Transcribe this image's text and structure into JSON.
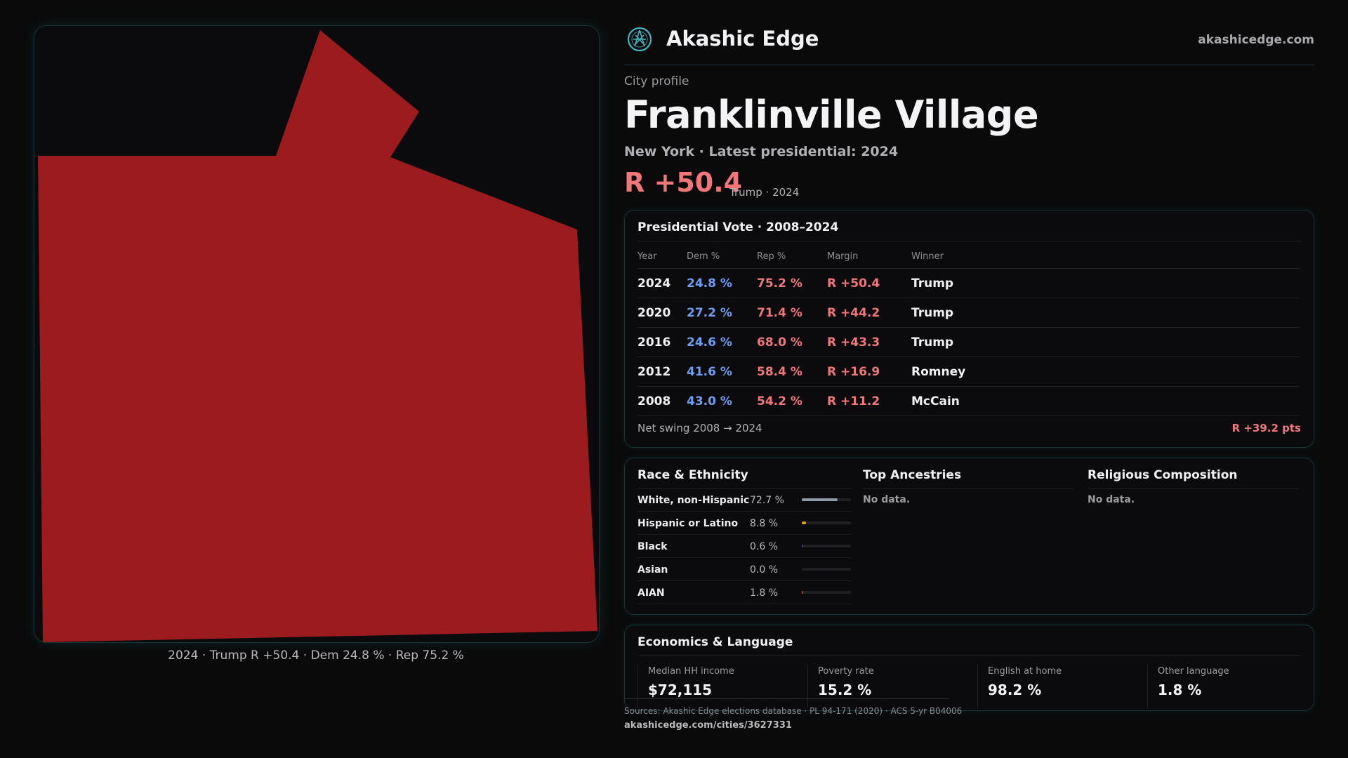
{
  "map": {
    "fill_color": "#9b1b1f",
    "caption": "2024 · Trump R +50.4 · Dem 24.8 % · Rep 75.2 %"
  },
  "header": {
    "brand": "Akashic Edge",
    "site": "akashicedge.com",
    "logo_icon": "compass-globe-icon"
  },
  "profile": {
    "eyebrow": "City profile",
    "city": "Franklinville Village",
    "subline": "New York · Latest presidential: 2024",
    "margin": "R +50.4",
    "margin_sub": "Trump · 2024"
  },
  "vote_table": {
    "title": "Presidential Vote · 2008–2024",
    "headers": [
      "Year",
      "Dem %",
      "Rep %",
      "Margin",
      "Winner"
    ],
    "rows": [
      [
        "2024",
        "24.8 %",
        "75.2 %",
        "R +50.4",
        "Trump"
      ],
      [
        "2020",
        "27.2 %",
        "71.4 %",
        "R +44.2",
        "Trump"
      ],
      [
        "2016",
        "24.6 %",
        "68.0 %",
        "R +43.3",
        "Trump"
      ],
      [
        "2012",
        "41.6 %",
        "58.4 %",
        "R +16.9",
        "Romney"
      ],
      [
        "2008",
        "43.0 %",
        "54.2 %",
        "R +11.2",
        "McCain"
      ]
    ],
    "swing_label": "Net swing 2008 → 2024",
    "swing_value": "R +39.2 pts"
  },
  "race": {
    "title": "Race & Ethnicity",
    "rows": [
      {
        "label": "White, non-Hispanic",
        "pct": "72.7 %",
        "value": 72.7,
        "color": "#8f9aa8"
      },
      {
        "label": "Hispanic or Latino",
        "pct": "8.8 %",
        "value": 8.8,
        "color": "#e0a21a"
      },
      {
        "label": "Black",
        "pct": "0.6 %",
        "value": 0.6,
        "color": "#6a5fd0"
      },
      {
        "label": "Asian",
        "pct": "0.0 %",
        "value": 0.0,
        "color": "#2fa0a0"
      },
      {
        "label": "AIAN",
        "pct": "1.8 %",
        "value": 1.8,
        "color": "#e07a1a"
      }
    ]
  },
  "ancestries": {
    "title": "Top Ancestries",
    "empty": "No data."
  },
  "religion": {
    "title": "Religious Composition",
    "empty": "No data."
  },
  "economics": {
    "title": "Economics & Language",
    "stats": [
      {
        "label": "Median HH income",
        "value": "$72,115"
      },
      {
        "label": "Poverty rate",
        "value": "15.2 %"
      },
      {
        "label": "English at home",
        "value": "98.2 %"
      },
      {
        "label": "Other language",
        "value": "1.8 %"
      }
    ]
  },
  "footer": {
    "sources": "Sources: Akashic Edge elections database · PL 94-171 (2020) · ACS 5-yr B04006",
    "permalink": "akashicedge.com/cities/3627331"
  }
}
